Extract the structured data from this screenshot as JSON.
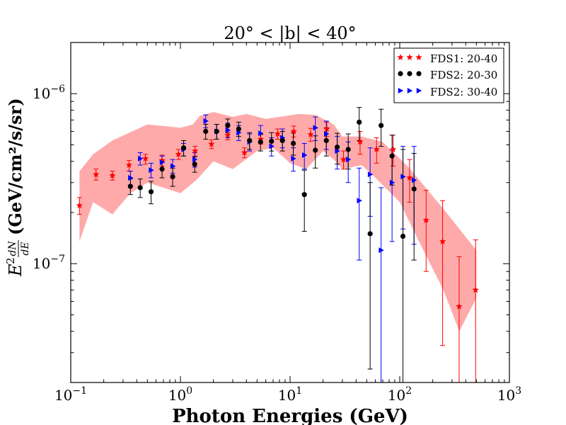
{
  "chart_data": {
    "type": "scatter",
    "title": "20° < |b| < 40°",
    "xlabel": "Photon Energies (GeV)",
    "ylabel_main": "E",
    "ylabel_sup": "2",
    "ylabel_frac_num": "dN",
    "ylabel_frac_den": "dE",
    "ylabel_units": "(GeV/cm²/s/sr)",
    "xscale": "log",
    "yscale": "log",
    "xlim": [
      0.1,
      1000
    ],
    "ylim": [
      2e-08,
      2e-06
    ],
    "x_ticks": [
      {
        "value": 0.1,
        "base": "10",
        "exp": "−1"
      },
      {
        "value": 1,
        "base": "10",
        "exp": "0"
      },
      {
        "value": 10,
        "base": "10",
        "exp": "1"
      },
      {
        "value": 100,
        "base": "10",
        "exp": "2"
      },
      {
        "value": 1000,
        "base": "10",
        "exp": "3"
      }
    ],
    "y_ticks": [
      {
        "value": 1e-07,
        "base": "10",
        "exp": "−7"
      },
      {
        "value": 1e-06,
        "base": "10",
        "exp": "−6"
      }
    ],
    "band": {
      "color": "#ffaaaa",
      "upper": [
        [
          0.12,
          3.5e-07
        ],
        [
          0.16,
          4.4e-07
        ],
        [
          0.24,
          5.3e-07
        ],
        [
          0.5,
          6.6e-07
        ],
        [
          1.0,
          6.3e-07
        ],
        [
          1.3,
          6.6e-07
        ],
        [
          1.5,
          7.4e-07
        ],
        [
          2.0,
          7.8e-07
        ],
        [
          3.0,
          7.3e-07
        ],
        [
          4.0,
          7.6e-07
        ],
        [
          6.0,
          7.1e-07
        ],
        [
          8.0,
          7.3e-07
        ],
        [
          12.0,
          7.6e-07
        ],
        [
          17.0,
          7.5e-07
        ],
        [
          25.0,
          6.6e-07
        ],
        [
          30.0,
          5.6e-07
        ],
        [
          45.0,
          5.6e-07
        ],
        [
          70.0,
          5.2e-07
        ],
        [
          120.0,
          3.7e-07
        ],
        [
          250.0,
          2.1e-07
        ],
        [
          500.0,
          1.2e-07
        ]
      ],
      "lower": [
        [
          500.0,
          6.3e-08
        ],
        [
          350.0,
          4e-08
        ],
        [
          250.0,
          7e-08
        ],
        [
          150.0,
          1.35e-07
        ],
        [
          100.0,
          2.3e-07
        ],
        [
          60.0,
          3.2e-07
        ],
        [
          45.0,
          3.8e-07
        ],
        [
          30.0,
          3.6e-07
        ],
        [
          25.0,
          4.1e-07
        ],
        [
          20.0,
          4.6e-07
        ],
        [
          14.0,
          3.6e-07
        ],
        [
          10.0,
          3.9e-07
        ],
        [
          7.0,
          4.8e-07
        ],
        [
          5.0,
          4.6e-07
        ],
        [
          3.0,
          3.6e-07
        ],
        [
          2.0,
          4e-07
        ],
        [
          1.4,
          3.1e-07
        ],
        [
          1.0,
          2.6e-07
        ],
        [
          0.7,
          2.8e-07
        ],
        [
          0.5,
          3e-07
        ],
        [
          0.35,
          2.6e-07
        ],
        [
          0.24,
          1.95e-07
        ],
        [
          0.16,
          2.3e-07
        ],
        [
          0.12,
          1.35e-07
        ]
      ]
    },
    "series": [
      {
        "name": "FDS1: 20-40",
        "color": "#ff0000",
        "err_color": "#ff0000",
        "marker": "star",
        "points": [
          {
            "x": 0.12,
            "y": 2.2e-07,
            "lo": 1.95e-07,
            "hi": 2.45e-07
          },
          {
            "x": 0.17,
            "y": 3.35e-07,
            "lo": 3.1e-07,
            "hi": 3.6e-07
          },
          {
            "x": 0.24,
            "y": 3.3e-07,
            "lo": 3.1e-07,
            "hi": 3.5e-07
          },
          {
            "x": 0.34,
            "y": 3.8e-07,
            "lo": 3.5e-07,
            "hi": 4.05e-07
          },
          {
            "x": 0.48,
            "y": 4.15e-07,
            "lo": 3.85e-07,
            "hi": 4.4e-07
          },
          {
            "x": 0.68,
            "y": 4.05e-07,
            "lo": 3.75e-07,
            "hi": 4.35e-07
          },
          {
            "x": 0.96,
            "y": 4.4e-07,
            "lo": 4.1e-07,
            "hi": 4.7e-07
          },
          {
            "x": 1.36,
            "y": 4.6e-07,
            "lo": 4.3e-07,
            "hi": 4.9e-07
          },
          {
            "x": 1.92,
            "y": 5.05e-07,
            "lo": 4.75e-07,
            "hi": 5.35e-07
          },
          {
            "x": 2.7,
            "y": 5.7e-07,
            "lo": 5.35e-07,
            "hi": 6.05e-07
          },
          {
            "x": 3.84,
            "y": 4.5e-07,
            "lo": 4.2e-07,
            "hi": 4.8e-07
          },
          {
            "x": 5.4,
            "y": 5.4e-07,
            "lo": 5.05e-07,
            "hi": 5.75e-07
          },
          {
            "x": 7.7,
            "y": 5.8e-07,
            "lo": 5.4e-07,
            "hi": 6.2e-07
          },
          {
            "x": 10.8,
            "y": 6e-07,
            "lo": 5.55e-07,
            "hi": 6.45e-07
          },
          {
            "x": 15.4,
            "y": 5.75e-07,
            "lo": 5.25e-07,
            "hi": 6.25e-07
          },
          {
            "x": 21.6,
            "y": 6.2e-07,
            "lo": 5.6e-07,
            "hi": 6.8e-07
          },
          {
            "x": 30.7,
            "y": 4.1e-07,
            "lo": 3.6e-07,
            "hi": 4.6e-07
          },
          {
            "x": 43.5,
            "y": 5.2e-07,
            "lo": 4.4e-07,
            "hi": 6e-07
          },
          {
            "x": 61.5,
            "y": 4.7e-07,
            "lo": 3.9e-07,
            "hi": 5.5e-07
          },
          {
            "x": 87.0,
            "y": 4.7e-07,
            "lo": 3.75e-07,
            "hi": 5.7e-07
          },
          {
            "x": 123.0,
            "y": 3.2e-07,
            "lo": 2.3e-07,
            "hi": 4.1e-07
          },
          {
            "x": 174.0,
            "y": 1.8e-07,
            "lo": 9e-08,
            "hi": 2.7e-07
          },
          {
            "x": 246.0,
            "y": 1.35e-07,
            "lo": 3.3e-08,
            "hi": 2.35e-07
          },
          {
            "x": 348.0,
            "y": 5.6e-08,
            "lo": 2e-08,
            "hi": 1.1e-07
          },
          {
            "x": 492.0,
            "y": 7e-08,
            "lo": 2e-08,
            "hi": 1.38e-07
          }
        ]
      },
      {
        "name": "FDS2: 20-30",
        "color": "#000000",
        "err_color": "#000000",
        "marker": "circle",
        "points": [
          {
            "x": 0.35,
            "y": 2.85e-07,
            "lo": 2.55e-07,
            "hi": 3.15e-07
          },
          {
            "x": 0.43,
            "y": 2.8e-07,
            "lo": 2.45e-07,
            "hi": 3.15e-07
          },
          {
            "x": 0.54,
            "y": 2.65e-07,
            "lo": 2.25e-07,
            "hi": 3.05e-07
          },
          {
            "x": 0.68,
            "y": 3.6e-07,
            "lo": 3.2e-07,
            "hi": 4e-07
          },
          {
            "x": 0.85,
            "y": 3.25e-07,
            "lo": 2.85e-07,
            "hi": 3.65e-07
          },
          {
            "x": 1.07,
            "y": 4.8e-07,
            "lo": 4.3e-07,
            "hi": 5.3e-07
          },
          {
            "x": 1.35,
            "y": 3.85e-07,
            "lo": 3.45e-07,
            "hi": 4.25e-07
          },
          {
            "x": 1.7,
            "y": 6e-07,
            "lo": 5.4e-07,
            "hi": 6.6e-07
          },
          {
            "x": 2.14,
            "y": 6e-07,
            "lo": 5.4e-07,
            "hi": 6.6e-07
          },
          {
            "x": 2.7,
            "y": 6.5e-07,
            "lo": 5.9e-07,
            "hi": 7.1e-07
          },
          {
            "x": 3.4,
            "y": 6.2e-07,
            "lo": 5.6e-07,
            "hi": 6.8e-07
          },
          {
            "x": 4.27,
            "y": 5.3e-07,
            "lo": 4.7e-07,
            "hi": 5.9e-07
          },
          {
            "x": 5.38,
            "y": 5.2e-07,
            "lo": 4.6e-07,
            "hi": 5.8e-07
          },
          {
            "x": 6.77,
            "y": 5.25e-07,
            "lo": 4.6e-07,
            "hi": 5.9e-07
          },
          {
            "x": 8.52,
            "y": 5.3e-07,
            "lo": 4.6e-07,
            "hi": 6e-07
          },
          {
            "x": 10.7,
            "y": 5.1e-07,
            "lo": 4.35e-07,
            "hi": 5.9e-07
          },
          {
            "x": 13.5,
            "y": 2.55e-07,
            "lo": 1.55e-07,
            "hi": 3.55e-07
          },
          {
            "x": 17.0,
            "y": 4.65e-07,
            "lo": 3.65e-07,
            "hi": 5.65e-07
          },
          {
            "x": 21.4,
            "y": 5.3e-07,
            "lo": 4.3e-07,
            "hi": 6.3e-07
          },
          {
            "x": 26.9,
            "y": 4.85e-07,
            "lo": 3.85e-07,
            "hi": 5.85e-07
          },
          {
            "x": 33.9,
            "y": 4.7e-07,
            "lo": 3.6e-07,
            "hi": 5.8e-07
          },
          {
            "x": 42.7,
            "y": 6.8e-07,
            "lo": 5.3e-07,
            "hi": 8.3e-07
          },
          {
            "x": 53.7,
            "y": 1.5e-07,
            "lo": 2.4e-08,
            "hi": 3e-07
          },
          {
            "x": 67.6,
            "y": 6.5e-07,
            "lo": 4.9e-07,
            "hi": 8.1e-07
          },
          {
            "x": 85.1,
            "y": 4.3e-07,
            "lo": 2.9e-07,
            "hi": 5.7e-07
          },
          {
            "x": 107.0,
            "y": 1.45e-07,
            "lo": 2e-08,
            "hi": 4.7e-07
          },
          {
            "x": 135.0,
            "y": 2.75e-07,
            "lo": 1.05e-07,
            "hi": 4.45e-07
          }
        ]
      },
      {
        "name": "FDS2: 30-40",
        "color": "#0000ff",
        "err_color": "#0000ff",
        "marker": "triangle",
        "points": [
          {
            "x": 0.35,
            "y": 3.2e-07,
            "lo": 2.9e-07,
            "hi": 3.5e-07
          },
          {
            "x": 0.43,
            "y": 4.15e-07,
            "lo": 3.8e-07,
            "hi": 4.5e-07
          },
          {
            "x": 0.54,
            "y": 3.55e-07,
            "lo": 3.2e-07,
            "hi": 3.9e-07
          },
          {
            "x": 0.68,
            "y": 3.95e-07,
            "lo": 3.6e-07,
            "hi": 4.3e-07
          },
          {
            "x": 0.85,
            "y": 3.75e-07,
            "lo": 3.4e-07,
            "hi": 4.1e-07
          },
          {
            "x": 1.07,
            "y": 4.7e-07,
            "lo": 4.3e-07,
            "hi": 5.1e-07
          },
          {
            "x": 1.35,
            "y": 4.1e-07,
            "lo": 3.7e-07,
            "hi": 4.5e-07
          },
          {
            "x": 1.7,
            "y": 6.9e-07,
            "lo": 6.3e-07,
            "hi": 7.5e-07
          },
          {
            "x": 2.14,
            "y": 6e-07,
            "lo": 5.4e-07,
            "hi": 6.6e-07
          },
          {
            "x": 2.7,
            "y": 6.1e-07,
            "lo": 5.5e-07,
            "hi": 6.7e-07
          },
          {
            "x": 3.4,
            "y": 5.9e-07,
            "lo": 5.3e-07,
            "hi": 6.5e-07
          },
          {
            "x": 4.27,
            "y": 5.2e-07,
            "lo": 4.6e-07,
            "hi": 5.8e-07
          },
          {
            "x": 5.38,
            "y": 5.85e-07,
            "lo": 5.2e-07,
            "hi": 6.5e-07
          },
          {
            "x": 6.77,
            "y": 4.9e-07,
            "lo": 4.3e-07,
            "hi": 5.5e-07
          },
          {
            "x": 8.52,
            "y": 5.5e-07,
            "lo": 4.8e-07,
            "hi": 6.2e-07
          },
          {
            "x": 10.7,
            "y": 4.15e-07,
            "lo": 3.5e-07,
            "hi": 4.8e-07
          },
          {
            "x": 13.5,
            "y": 4.35e-07,
            "lo": 3.6e-07,
            "hi": 5.1e-07
          },
          {
            "x": 17.0,
            "y": 6.3e-07,
            "lo": 5.3e-07,
            "hi": 7.3e-07
          },
          {
            "x": 21.4,
            "y": 5.8e-07,
            "lo": 4.7e-07,
            "hi": 6.9e-07
          },
          {
            "x": 26.9,
            "y": 4.6e-07,
            "lo": 3.6e-07,
            "hi": 5.6e-07
          },
          {
            "x": 33.9,
            "y": 4.1e-07,
            "lo": 3e-07,
            "hi": 5.2e-07
          },
          {
            "x": 42.7,
            "y": 2.35e-07,
            "lo": 1.05e-07,
            "hi": 3.65e-07
          },
          {
            "x": 53.7,
            "y": 3.35e-07,
            "lo": 1.9e-07,
            "hi": 4.8e-07
          },
          {
            "x": 67.6,
            "y": 1.2e-07,
            "lo": 2e-08,
            "hi": 2.8e-07
          },
          {
            "x": 85.1,
            "y": 3e-07,
            "lo": 1.35e-07,
            "hi": 4.65e-07
          },
          {
            "x": 107.0,
            "y": 3.25e-07,
            "lo": 1.6e-07,
            "hi": 4.9e-07
          },
          {
            "x": 135.0,
            "y": 3.1e-07,
            "lo": 1.3e-07,
            "hi": 4.9e-07
          }
        ]
      }
    ],
    "legend": {
      "placement": "top-right",
      "entries": [
        "FDS1: 20-40",
        "FDS2: 20-30",
        "FDS2: 30-40"
      ]
    }
  }
}
